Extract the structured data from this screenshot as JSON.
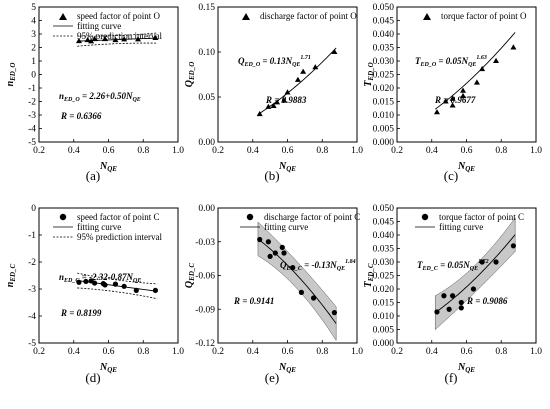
{
  "chart_data": [
    {
      "type": "scatter",
      "panel_label": "(a)",
      "marker": "triangle",
      "ylabel": {
        "main": "n",
        "sub": "ED_O"
      },
      "xlabel": {
        "main": "N",
        "sub": "QE"
      },
      "xlim": [
        0.2,
        1.0
      ],
      "ylim": [
        -5,
        5
      ],
      "xticks": [
        "0.2",
        "0.4",
        "0.6",
        "0.8",
        "1.0"
      ],
      "yticks": [
        "-5",
        "-4",
        "-3",
        "-2",
        "-1",
        "0",
        "1",
        "2",
        "3",
        "4",
        "5"
      ],
      "legend": [
        "speed factor of point O",
        "fitting curve",
        "95% prediction interval"
      ],
      "equation": {
        "lhs": "n",
        "lhs_sub": "ED_O",
        "rhs": " = 2.26+0.50",
        "var": "N",
        "var_sub": "QE",
        "exp": ""
      },
      "r_text": "R = 0.6366",
      "points": [
        [
          0.43,
          2.47
        ],
        [
          0.48,
          2.55
        ],
        [
          0.5,
          2.45
        ],
        [
          0.52,
          2.62
        ],
        [
          0.58,
          2.62
        ],
        [
          0.64,
          2.55
        ],
        [
          0.69,
          2.6
        ],
        [
          0.77,
          2.6
        ],
        [
          0.87,
          2.7
        ]
      ],
      "fit": {
        "kind": "linear",
        "a": 2.26,
        "b": 0.5
      },
      "band": {
        "half_width": 0.3
      }
    },
    {
      "type": "scatter",
      "panel_label": "(b)",
      "marker": "triangle",
      "ylabel": {
        "main": "Q",
        "sub": "ED_O"
      },
      "xlabel": {
        "main": "N",
        "sub": "QE"
      },
      "xlim": [
        0.2,
        1.0
      ],
      "ylim": [
        0.0,
        0.15
      ],
      "xticks": [
        "0.2",
        "0.4",
        "0.6",
        "0.8",
        "1.0"
      ],
      "yticks": [
        "0.00",
        "0.05",
        "0.10",
        "0.15"
      ],
      "legend": [
        "discharge factor of point O"
      ],
      "equation": {
        "lhs": "Q",
        "lhs_sub": "ED_O",
        "rhs": " = 0.13",
        "var": "N",
        "var_sub": "QE",
        "exp": "1.71"
      },
      "r_text": "R = 0.9883",
      "points": [
        [
          0.44,
          0.031
        ],
        [
          0.49,
          0.039
        ],
        [
          0.52,
          0.04
        ],
        [
          0.54,
          0.044
        ],
        [
          0.58,
          0.046
        ],
        [
          0.6,
          0.055
        ],
        [
          0.66,
          0.069
        ],
        [
          0.69,
          0.078
        ],
        [
          0.76,
          0.083
        ],
        [
          0.87,
          0.1
        ]
      ],
      "fit": {
        "kind": "power",
        "a": 0.13,
        "b": 1.71
      }
    },
    {
      "type": "scatter",
      "panel_label": "(c)",
      "marker": "triangle",
      "ylabel": {
        "main": "T",
        "sub": "ED_O"
      },
      "xlabel": {
        "main": "N",
        "sub": "QE"
      },
      "xlim": [
        0.2,
        1.0
      ],
      "ylim": [
        0.0,
        0.05
      ],
      "xticks": [
        "0.2",
        "0.4",
        "0.6",
        "0.8",
        "1.0"
      ],
      "yticks": [
        "0.000",
        "0.005",
        "0.010",
        "0.015",
        "0.020",
        "0.025",
        "0.030",
        "0.035",
        "0.040",
        "0.045",
        "0.050"
      ],
      "legend": [
        "torque factor of point O"
      ],
      "equation": {
        "lhs": "T",
        "lhs_sub": "ED_O",
        "rhs": " = 0.05",
        "var": "N",
        "var_sub": "QE",
        "exp": "1.63"
      },
      "r_text": "R = 0.9677",
      "points": [
        [
          0.43,
          0.011
        ],
        [
          0.48,
          0.015
        ],
        [
          0.52,
          0.0135
        ],
        [
          0.52,
          0.016
        ],
        [
          0.58,
          0.017
        ],
        [
          0.58,
          0.019
        ],
        [
          0.66,
          0.022
        ],
        [
          0.69,
          0.027
        ],
        [
          0.77,
          0.03
        ],
        [
          0.87,
          0.035
        ]
      ],
      "fit": {
        "kind": "power",
        "a": 0.05,
        "b": 1.63
      }
    },
    {
      "type": "scatter",
      "panel_label": "(d)",
      "marker": "circle",
      "ylabel": {
        "main": "n",
        "sub": "ED_C"
      },
      "xlabel": {
        "main": "N",
        "sub": "QE"
      },
      "xlim": [
        0.2,
        1.0
      ],
      "ylim": [
        -5,
        0
      ],
      "xticks": [
        "0.2",
        "0.4",
        "0.6",
        "0.8",
        "1.0"
      ],
      "yticks": [
        "-5",
        "-4",
        "-3",
        "-2",
        "-1",
        "0"
      ],
      "legend": [
        "speed factor of point C",
        "fitting curve",
        "95% prediction interval"
      ],
      "equation": {
        "lhs": "n",
        "lhs_sub": "ED_C",
        "rhs": " = -2.32-0.87",
        "var": "N",
        "var_sub": "QE",
        "exp": ""
      },
      "r_text": "R = 0.8199",
      "points": [
        [
          0.43,
          -2.75
        ],
        [
          0.47,
          -2.72
        ],
        [
          0.5,
          -2.7
        ],
        [
          0.52,
          -2.78
        ],
        [
          0.57,
          -2.8
        ],
        [
          0.58,
          -2.85
        ],
        [
          0.64,
          -2.82
        ],
        [
          0.69,
          -2.9
        ],
        [
          0.76,
          -3.05
        ],
        [
          0.87,
          -3.05
        ]
      ],
      "fit": {
        "kind": "linear",
        "a": -2.32,
        "b": -0.87
      },
      "band": {
        "half_width": 0.22
      }
    },
    {
      "type": "scatter",
      "panel_label": "(e)",
      "marker": "circle",
      "ylabel": {
        "main": "Q",
        "sub": "ED_C"
      },
      "xlabel": {
        "main": "N",
        "sub": "QE"
      },
      "xlim": [
        0.2,
        1.0
      ],
      "ylim": [
        -0.12,
        0.0
      ],
      "xticks": [
        "0.2",
        "0.4",
        "0.6",
        "0.8",
        "1.0"
      ],
      "yticks": [
        "0.00",
        "-0.03",
        "-0.06",
        "-0.09",
        "-0.12"
      ],
      "legend": [
        "discharge factor of point C",
        "fitting curve"
      ],
      "equation": {
        "lhs": "Q",
        "lhs_sub": "ED_C",
        "rhs": " = -0.13",
        "var": "N",
        "var_sub": "QE",
        "exp": "1.84"
      },
      "r_text": "R = 0.9141",
      "points": [
        [
          0.44,
          -0.028
        ],
        [
          0.49,
          -0.03
        ],
        [
          0.5,
          -0.043
        ],
        [
          0.53,
          -0.04
        ],
        [
          0.57,
          -0.035
        ],
        [
          0.58,
          -0.04
        ],
        [
          0.63,
          -0.053
        ],
        [
          0.68,
          -0.075
        ],
        [
          0.75,
          -0.08
        ],
        [
          0.87,
          -0.093
        ]
      ],
      "fit": {
        "kind": "power",
        "a": -0.13,
        "b": 1.84
      },
      "band": {
        "half_width": 0.012
      }
    },
    {
      "type": "scatter",
      "panel_label": "(f)",
      "marker": "circle",
      "ylabel": {
        "main": "T",
        "sub": "ED_C"
      },
      "xlabel": {
        "main": "N",
        "sub": "QE"
      },
      "xlim": [
        0.2,
        1.0
      ],
      "ylim": [
        0.0,
        0.05
      ],
      "xticks": [
        "0.2",
        "0.4",
        "0.6",
        "0.8",
        "1.0"
      ],
      "yticks": [
        "0.000",
        "0.005",
        "0.010",
        "0.015",
        "0.020",
        "0.025",
        "0.030",
        "0.035",
        "0.040",
        "0.045",
        "0.050"
      ],
      "legend": [
        "torque factor of point C",
        "fitting curve"
      ],
      "equation": {
        "lhs": "T",
        "lhs_sub": "ED_C",
        "rhs": " = 0.05",
        "var": "N",
        "var_sub": "QE",
        "exp": "1.72"
      },
      "r_text": "R = 0.9086",
      "points": [
        [
          0.43,
          0.0115
        ],
        [
          0.47,
          0.0175
        ],
        [
          0.5,
          0.0125
        ],
        [
          0.52,
          0.0175
        ],
        [
          0.57,
          0.013
        ],
        [
          0.57,
          0.015
        ],
        [
          0.64,
          0.02
        ],
        [
          0.69,
          0.03
        ],
        [
          0.77,
          0.03
        ],
        [
          0.87,
          0.036
        ]
      ],
      "fit": {
        "kind": "power",
        "a": 0.05,
        "b": 1.72
      },
      "band": {
        "half_width": 0.005
      }
    }
  ]
}
